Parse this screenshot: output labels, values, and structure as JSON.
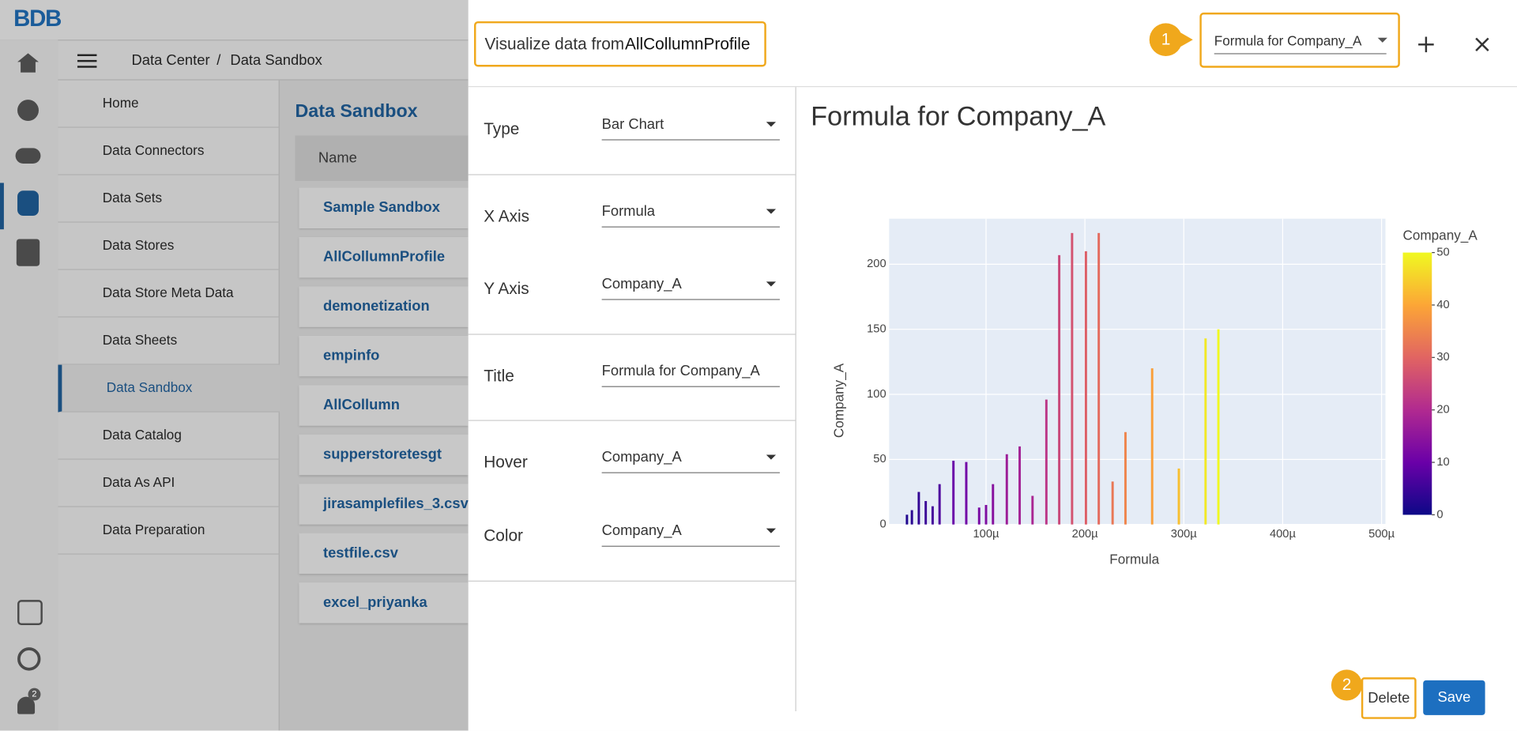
{
  "brand": "BDB",
  "notifications": 2,
  "breadcrumb": {
    "parent": "Data Center",
    "separator": "/",
    "current": "Data Sandbox"
  },
  "menu": {
    "items": [
      "Home",
      "Data Connectors",
      "Data Sets",
      "Data Stores",
      "Data Store Meta Data",
      "Data Sheets",
      "Data Sandbox",
      "Data Catalog",
      "Data As API",
      "Data Preparation"
    ],
    "selected_index": 6
  },
  "content": {
    "title": "Data Sandbox",
    "column": "Name",
    "rows": [
      "Sample Sandbox",
      "AllCollumnProfile",
      "demonetization",
      "empinfo",
      "AllCollumn",
      "supperstoretesgt",
      "jirasamplefiles_3.csv",
      "testfile.csv",
      "excel_priyanka"
    ]
  },
  "dialog": {
    "heading": {
      "prefix": "Visualize data from",
      "source": "AllCollumnProfile"
    },
    "step1": 1,
    "chart_select": "Formula for Company_A",
    "step2": 2,
    "delete": "Delete",
    "save": "Save",
    "form": [
      {
        "label": "Type",
        "value": "Bar Chart",
        "kind": "select"
      },
      {
        "label": "X Axis",
        "value": "Formula",
        "kind": "select"
      },
      {
        "label": "Y Axis",
        "value": "Company_A",
        "kind": "select"
      },
      {
        "label": "Title",
        "value": "Formula for Company_A",
        "kind": "input"
      },
      {
        "label": "Hover",
        "value": "Company_A",
        "kind": "select"
      },
      {
        "label": "Color",
        "value": "Company_A",
        "kind": "select"
      }
    ]
  },
  "chart": {
    "type": "bar",
    "title": "Formula for Company_A",
    "x_label": "Formula",
    "y_label": "Company_A",
    "series": [
      {
        "name": "Company_A",
        "x": [
          2e-05,
          2.5e-05,
          3.2e-05,
          3.9e-05,
          4.6e-05,
          5.3e-05,
          6.7e-05,
          8e-05,
          9.3e-05,
          0.0001,
          0.000107,
          0.000121,
          0.000134,
          0.000147,
          0.000161,
          0.000174,
          0.000187,
          0.000201,
          0.000214,
          0.000228,
          0.000241,
          0.000268,
          0.000295,
          0.000322,
          0.000335
        ],
        "values": [
          7.5,
          11,
          25,
          18,
          14,
          31,
          49,
          48,
          13,
          15,
          31,
          54,
          60,
          22,
          96,
          207,
          224,
          210,
          224,
          33,
          71,
          120,
          43,
          143,
          150
        ],
        "color_values": [
          2,
          3,
          4,
          5,
          6,
          7,
          10,
          11,
          12,
          13,
          14,
          17,
          18,
          19,
          22,
          25,
          27,
          29,
          31,
          33,
          35,
          39,
          43,
          48,
          50
        ]
      }
    ],
    "xlim": [
      0,
      0.0005
    ],
    "xticks": [
      {
        "value": 0.0001,
        "label": "100µ"
      },
      {
        "value": 0.0002,
        "label": "200µ"
      },
      {
        "value": 0.0003,
        "label": "300µ"
      },
      {
        "value": 0.0004,
        "label": "400µ"
      },
      {
        "value": 0.0005,
        "label": "500µ"
      }
    ],
    "ylim": [
      0,
      235
    ],
    "yticks": [
      0,
      50,
      100,
      150,
      200
    ],
    "grid": true,
    "colorbar": {
      "title": "Company_A",
      "lim": [
        0,
        50
      ],
      "ticks": [
        0,
        10,
        20,
        30,
        40,
        50
      ]
    },
    "colorscale": [
      "#0d0887",
      "#6a00a8",
      "#b12a90",
      "#e16462",
      "#fca636",
      "#f0f921"
    ]
  }
}
